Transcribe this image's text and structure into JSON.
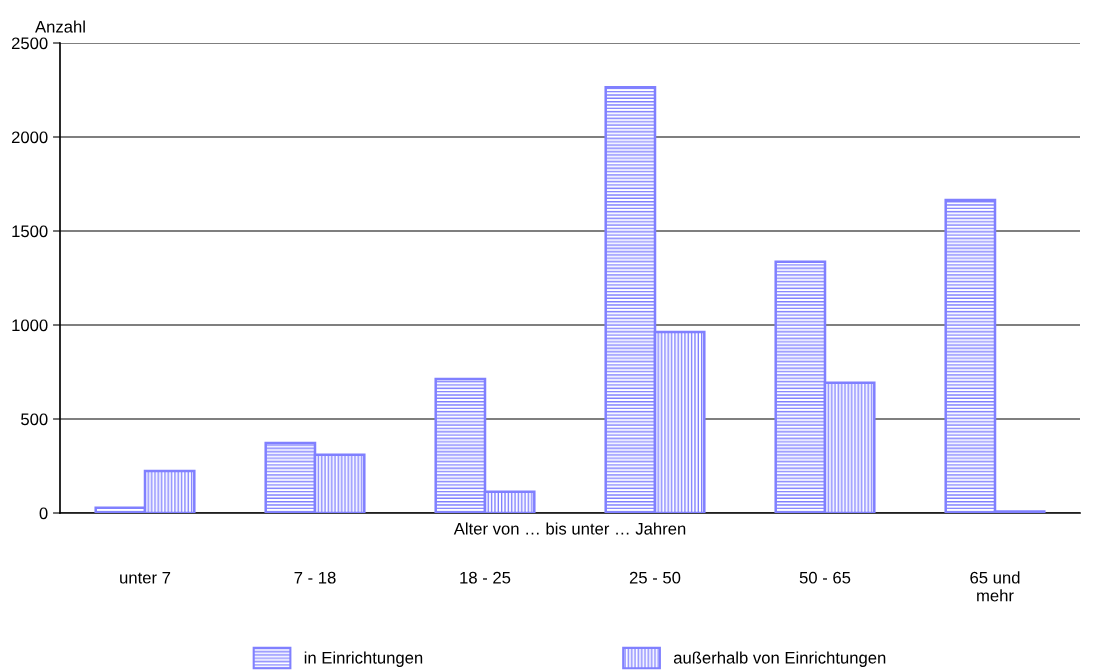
{
  "chart_data": {
    "type": "bar",
    "ylabel": "Anzahl",
    "xlabel": "Alter von … bis unter … Jahren",
    "categories": [
      "unter 7",
      "7 - 18",
      "18 - 25",
      "25 - 50",
      "50 - 65",
      "65 und\nmehr"
    ],
    "series": [
      {
        "name": "in Einrichtungen",
        "color": "#8080ff",
        "values": [
          28,
          372,
          713,
          2265,
          1337,
          1665
        ]
      },
      {
        "name": "außerhalb von Einrichtungen",
        "color": "#8080ff",
        "values": [
          223,
          310,
          113,
          963,
          693,
          8
        ]
      }
    ],
    "ylim": [
      0,
      2500
    ],
    "yticks": [
      0,
      500,
      1000,
      1500,
      2000,
      2500
    ],
    "grid": "y",
    "legend": "bottom"
  }
}
